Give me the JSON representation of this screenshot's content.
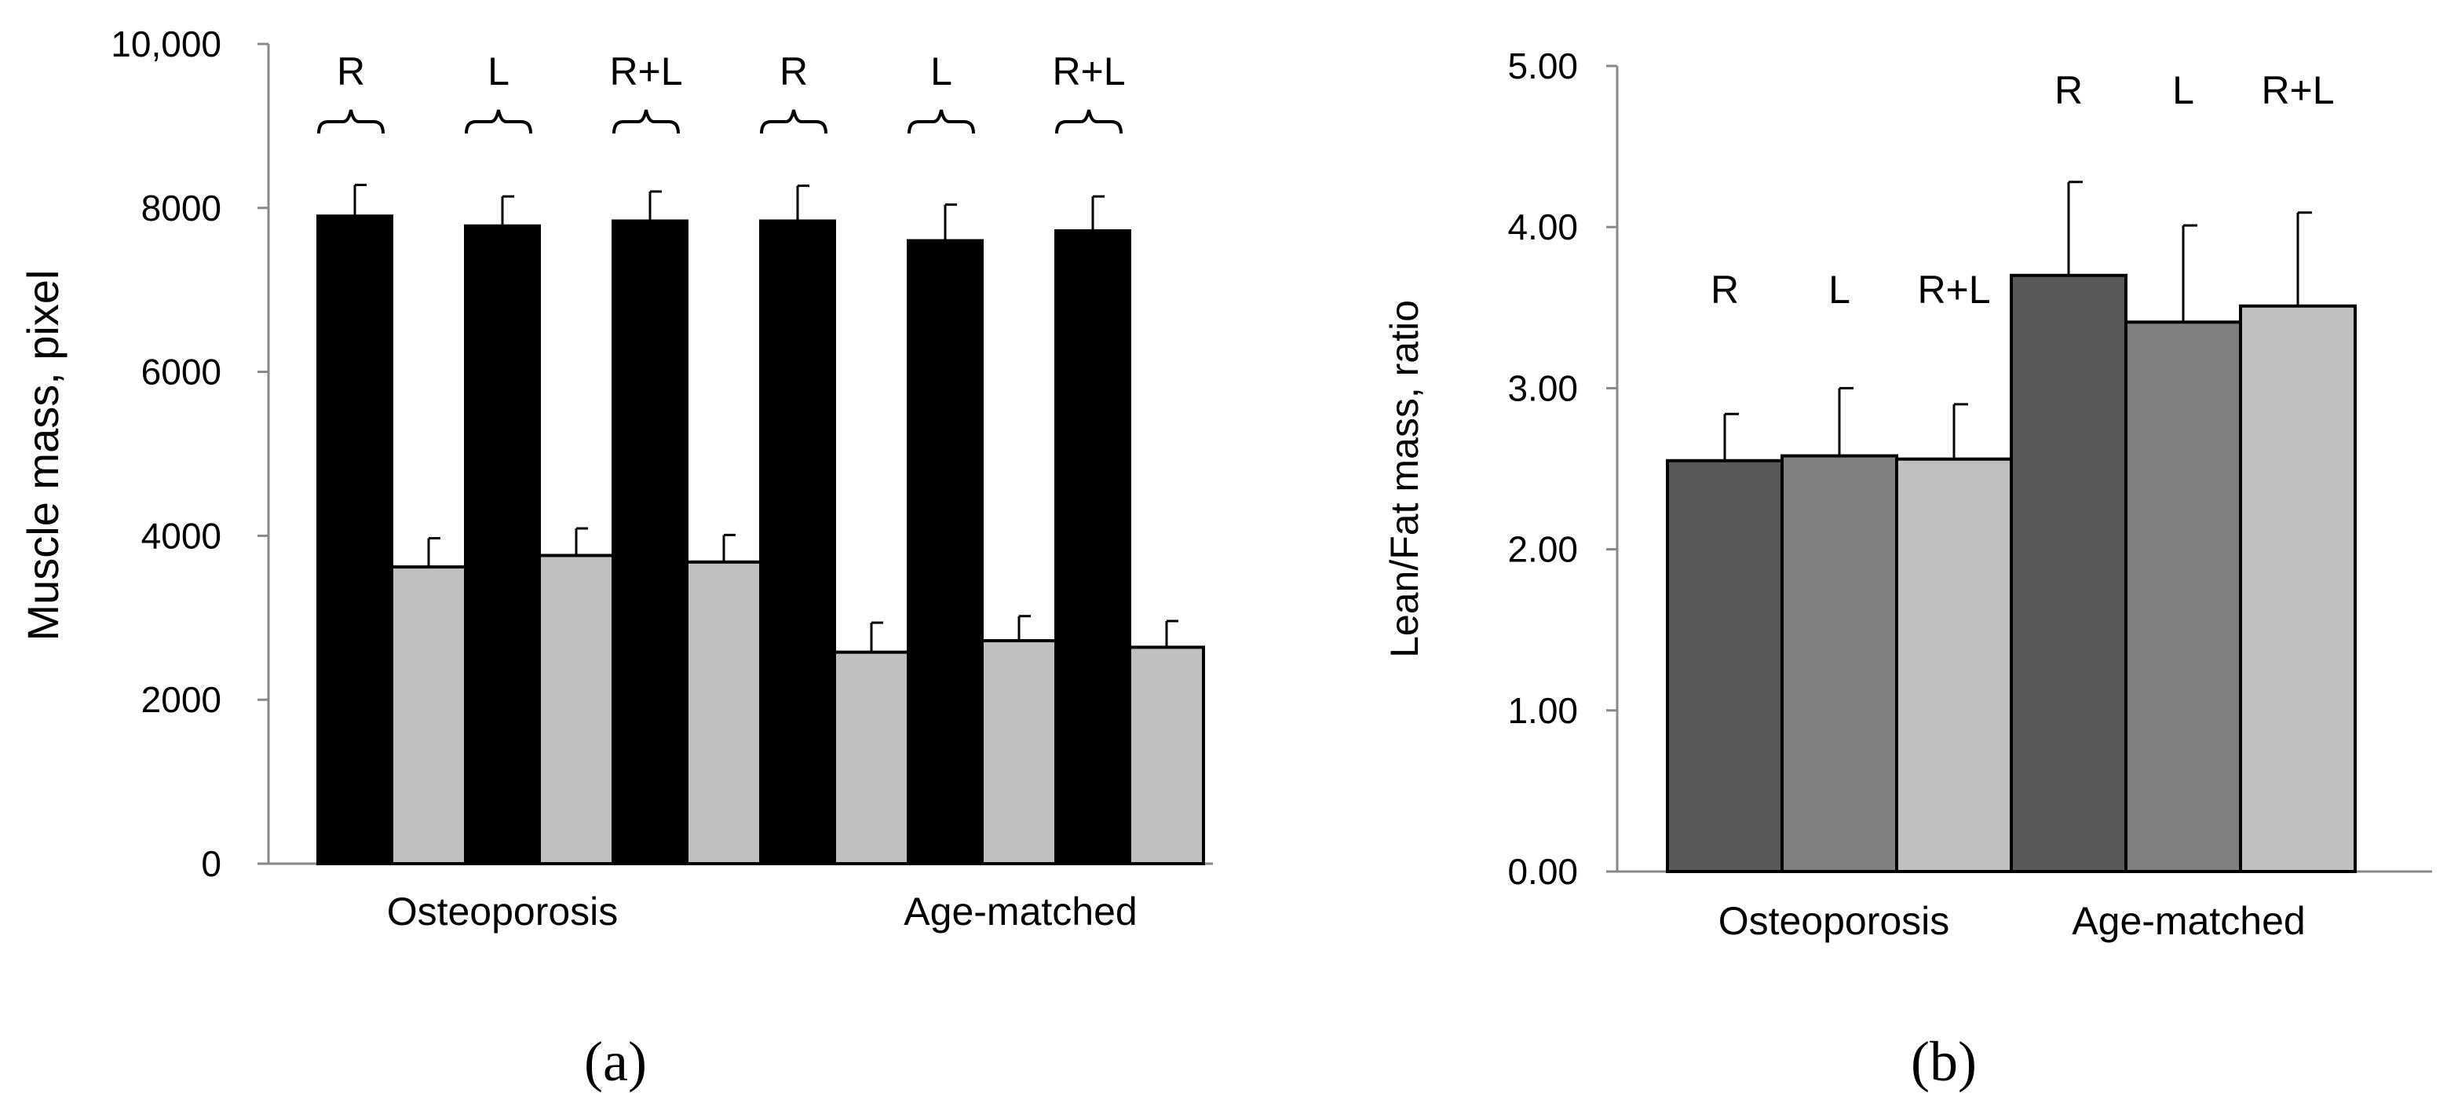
{
  "chart_data": [
    {
      "id": "a",
      "type": "bar",
      "panel_label": "(a)",
      "title": "",
      "xlabel": "",
      "ylabel": "Muscle mass, pixel",
      "ylim": [
        0,
        10000
      ],
      "yticks": [
        {
          "value": 0,
          "label": "0"
        },
        {
          "value": 2000,
          "label": "2000"
        },
        {
          "value": 4000,
          "label": "4000"
        },
        {
          "value": 6000,
          "label": "6000"
        },
        {
          "value": 8000,
          "label": "8000"
        },
        {
          "value": 10000,
          "label": "10,000"
        }
      ],
      "groups": [
        "Osteoporosis",
        "Age-matched"
      ],
      "categories": [
        "R",
        "L",
        "R+L",
        "R",
        "L",
        "R+L"
      ],
      "series": [
        {
          "name": "dark",
          "color": "#000000",
          "values": [
            7900,
            7780,
            7840,
            7840,
            7600,
            7720
          ],
          "errors": [
            380,
            360,
            360,
            430,
            440,
            420
          ]
        },
        {
          "name": "light",
          "color": "#c0c0c0",
          "values": [
            3620,
            3760,
            3680,
            2580,
            2720,
            2640
          ],
          "errors": [
            350,
            330,
            330,
            360,
            300,
            320
          ]
        }
      ],
      "grid": false,
      "legend": "none"
    },
    {
      "id": "b",
      "type": "bar",
      "panel_label": "(b)",
      "title": "",
      "xlabel": "",
      "ylabel": "Lean/Fat mass, ratio",
      "ylim": [
        0,
        5
      ],
      "yticks": [
        {
          "value": 0,
          "label": "0.00"
        },
        {
          "value": 1,
          "label": "1.00"
        },
        {
          "value": 2,
          "label": "2.00"
        },
        {
          "value": 3,
          "label": "3.00"
        },
        {
          "value": 4,
          "label": "4.00"
        },
        {
          "value": 5,
          "label": "5.00"
        }
      ],
      "groups": [
        "Osteoporosis",
        "Age-matched"
      ],
      "categories": [
        "R",
        "L",
        "R+L",
        "R",
        "L",
        "R+L"
      ],
      "values": [
        2.55,
        2.58,
        2.56,
        3.7,
        3.41,
        3.51
      ],
      "errors": [
        0.29,
        0.42,
        0.34,
        0.58,
        0.6,
        0.58
      ],
      "colors": [
        "#595959",
        "#808080",
        "#c0c0c0",
        "#595959",
        "#808080",
        "#c0c0c0"
      ],
      "grid": false,
      "legend": "none"
    }
  ]
}
